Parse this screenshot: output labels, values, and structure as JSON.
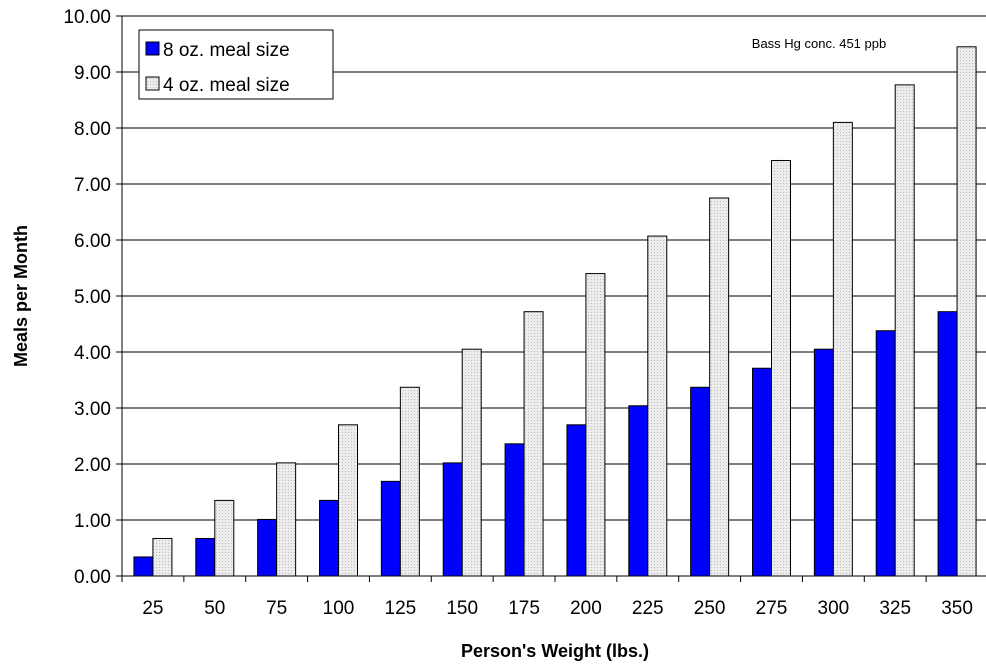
{
  "chart_data": {
    "type": "bar",
    "title": "",
    "annotation": "Bass Hg conc. 451 ppb",
    "xlabel": "Person's Weight (lbs.)",
    "ylabel": "Meals per Month",
    "categories": [
      "25",
      "50",
      "75",
      "100",
      "125",
      "150",
      "175",
      "200",
      "225",
      "250",
      "275",
      "300",
      "325",
      "350"
    ],
    "series": [
      {
        "name": "8 oz. meal size",
        "color": "#0000ff",
        "values": [
          0.34,
          0.67,
          1.01,
          1.35,
          1.69,
          2.02,
          2.36,
          2.7,
          3.04,
          3.37,
          3.71,
          4.05,
          4.38,
          4.72
        ]
      },
      {
        "name": "4 oz. meal size",
        "color": "#e8e8e8",
        "values": [
          0.67,
          1.35,
          2.02,
          2.7,
          3.37,
          4.05,
          4.72,
          5.4,
          6.07,
          6.75,
          7.42,
          8.1,
          8.77,
          9.45
        ]
      }
    ],
    "ylim": [
      0,
      10
    ],
    "yticks": [
      "0.00",
      "1.00",
      "2.00",
      "3.00",
      "4.00",
      "5.00",
      "6.00",
      "7.00",
      "8.00",
      "9.00",
      "10.00"
    ],
    "grid": "horizontal",
    "legend": "top-left"
  }
}
